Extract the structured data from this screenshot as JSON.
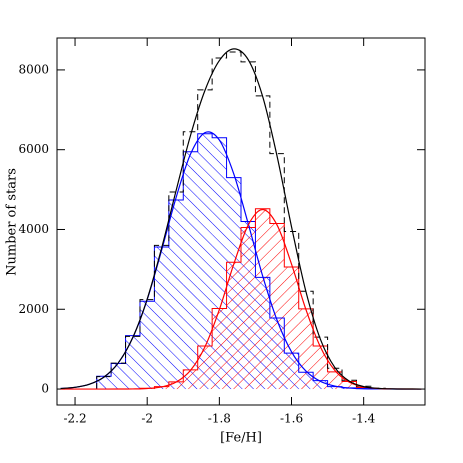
{
  "chart_data": {
    "type": "histogram",
    "x_label": "[Fe/H]",
    "y_label": "Number of stars",
    "xlim": [
      -2.25,
      -1.23
    ],
    "ylim": [
      -400,
      8800
    ],
    "xticks": [
      -2.2,
      -2,
      -1.8,
      -1.6,
      -1.4
    ],
    "yticks": [
      0,
      2000,
      4000,
      6000,
      8000
    ],
    "bins": [
      -2.14,
      -2.1,
      -2.06,
      -2.02,
      -1.98,
      -1.94,
      -1.9,
      -1.86,
      -1.82,
      -1.78,
      -1.74,
      -1.7,
      -1.66,
      -1.62,
      -1.58,
      -1.54,
      -1.5,
      -1.46,
      -1.42,
      -1.38,
      -1.34,
      -1.3
    ],
    "series": [
      {
        "color": "#0000ff",
        "hatch": "backslash",
        "dashed": false,
        "values": [
          320,
          640,
          1340,
          2200,
          3560,
          4740,
          5950,
          6400,
          6300,
          5300,
          4200,
          2800,
          1780,
          900,
          420,
          210,
          60,
          30,
          10,
          0,
          0
        ]
      },
      {
        "color": "#ff0000",
        "hatch": "slash",
        "dashed": false,
        "values": [
          0,
          0,
          0,
          20,
          60,
          180,
          480,
          1080,
          2020,
          3180,
          4050,
          4520,
          4150,
          3060,
          2010,
          1080,
          430,
          190,
          40,
          15,
          0
        ]
      },
      {
        "color": "#000000",
        "hatch": "none",
        "dashed": true,
        "values": [
          310,
          650,
          1320,
          2240,
          3600,
          4940,
          6450,
          7500,
          8300,
          8450,
          8200,
          7350,
          5900,
          3950,
          2450,
          1300,
          520,
          220,
          70,
          20,
          0
        ]
      }
    ],
    "fits": {
      "x": [
        -2.24,
        -2.2,
        -2.16,
        -2.12,
        -2.08,
        -2.04,
        -2.0,
        -1.96,
        -1.92,
        -1.88,
        -1.84,
        -1.8,
        -1.76,
        -1.72,
        -1.68,
        -1.64,
        -1.6,
        -1.56,
        -1.52,
        -1.48,
        -1.44,
        -1.4,
        -1.36,
        -1.32,
        -1.28,
        -1.24
      ],
      "series": [
        {
          "color": "#0000ff",
          "values": [
            14,
            43,
            121,
            299,
            657,
            1288,
            2243,
            3480,
            4797,
            5888,
            6427,
            6242,
            5393,
            4145,
            2835,
            1725,
            934,
            450,
            193,
            74,
            25,
            8,
            3,
            1,
            0,
            0
          ]
        },
        {
          "color": "#ff0000",
          "values": [
            0,
            0,
            0,
            0,
            1,
            3,
            14,
            53,
            173,
            468,
            1057,
            1992,
            3134,
            4111,
            4500,
            4111,
            3134,
            1992,
            1057,
            468,
            173,
            53,
            14,
            3,
            1,
            0
          ]
        },
        {
          "color": "#000000",
          "values": [
            14,
            43,
            121,
            299,
            658,
            1291,
            2257,
            3533,
            4970,
            6356,
            7484,
            8234,
            8527,
            8256,
            7335,
            5836,
            4068,
            2442,
            1250,
            542,
            198,
            61,
            17,
            4,
            1,
            0
          ]
        }
      ]
    }
  }
}
